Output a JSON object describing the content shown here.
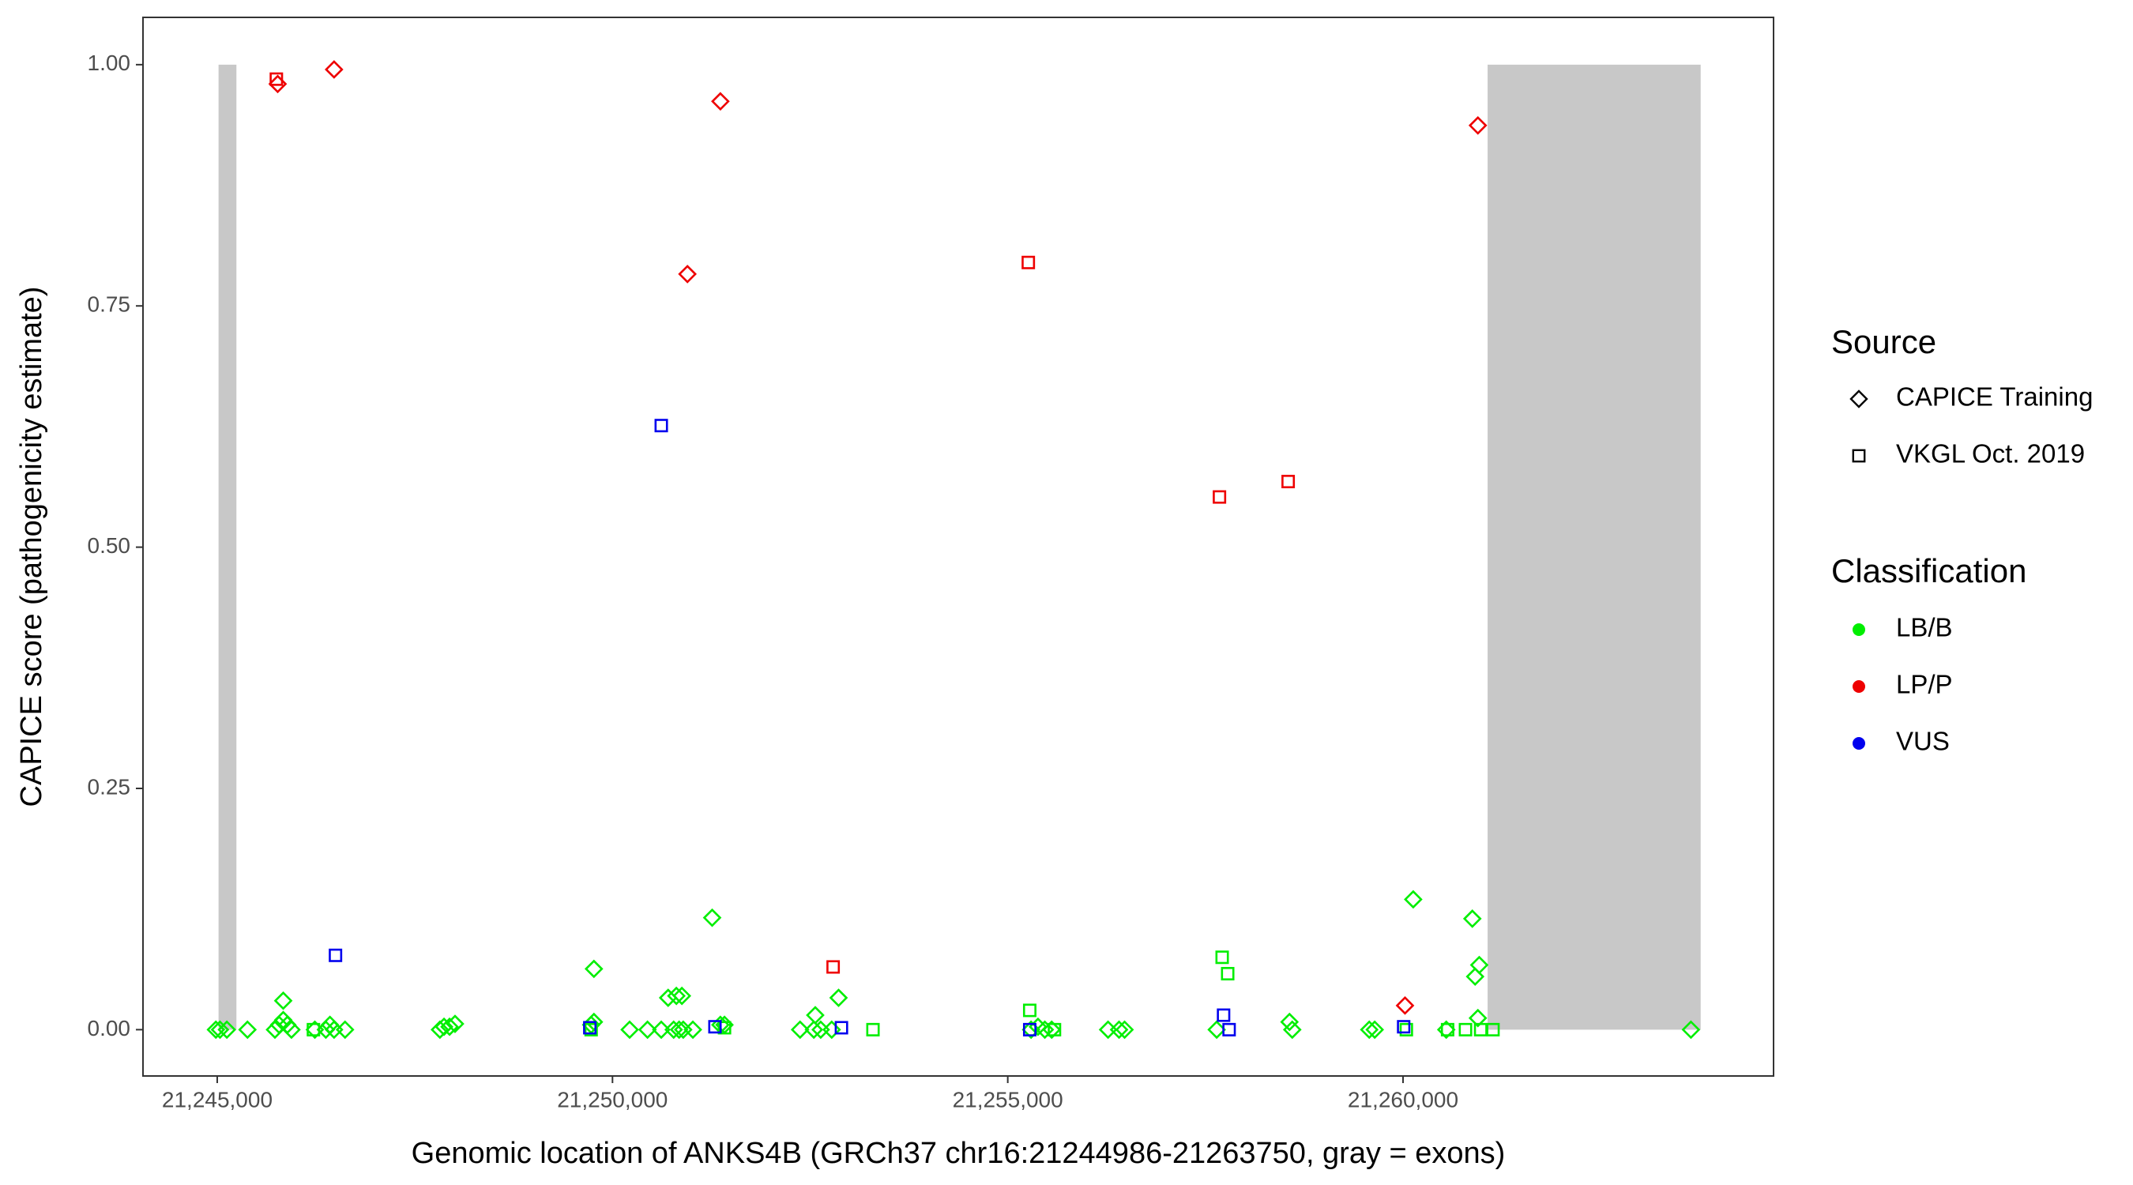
{
  "chart_data": {
    "type": "scatter",
    "xlabel": "Genomic location of ANKS4B (GRCh37 chr16:21244986-21263750, gray = exons)",
    "ylabel": "CAPICE score (pathogenicity estimate)",
    "xlim": [
      21244061,
      21264687
    ],
    "ylim": [
      -0.048,
      1.049
    ],
    "xticks": [
      {
        "value": 21245000,
        "label": "21,245,000"
      },
      {
        "value": 21250000,
        "label": "21,250,000"
      },
      {
        "value": 21255000,
        "label": "21,255,000"
      },
      {
        "value": 21260000,
        "label": "21,260,000"
      }
    ],
    "yticks": [
      {
        "value": 0,
        "label": "0.00"
      },
      {
        "value": 0.25,
        "label": "0.25"
      },
      {
        "value": 0.5,
        "label": "0.50"
      },
      {
        "value": 0.75,
        "label": "0.75"
      },
      {
        "value": 1,
        "label": "1.00"
      }
    ],
    "exon_color": "#c8c8c8",
    "exons": [
      {
        "start": 21245017,
        "end": 21245243,
        "bottom": 0,
        "top": 1
      },
      {
        "start": 21261070,
        "end": 21263765,
        "bottom": 0,
        "top": 1
      }
    ],
    "legend_source_title": "Source",
    "legend_class_title": "Classification",
    "series": [
      {
        "source": "CAPICE Training",
        "shape": "diamond",
        "classification": "LB/B",
        "color": "#00ee00",
        "x": [
          21244983,
          21245035,
          21245122,
          21245383,
          21245730,
          21245783,
          21245835,
          21245887,
          21245939,
          21245835,
          21246235,
          21246374,
          21246426,
          21246478,
          21246617,
          21247817,
          21247869,
          21247939,
          21248008,
          21249765,
          21249730,
          21249765,
          21250217,
          21250443,
          21250617,
          21250774,
          21250843,
          21250895,
          21251017,
          21250704,
          21250808,
          21250878,
          21251261,
          21251365,
          21251417,
          21252373,
          21252547,
          21252634,
          21252773,
          21252565,
          21252860,
          21255295,
          21255382,
          21255469,
          21255556,
          21256269,
          21256408,
          21256478,
          21257643,
          21258564,
          21258599,
          21259573,
          21259642,
          21260129,
          21260877,
          21260912,
          21260964,
          21260947,
          21260547,
          21263642
        ],
        "values": [
          0,
          0,
          0,
          0,
          0,
          0.005,
          0.01,
          0.005,
          0,
          0.03,
          0,
          0,
          0.005,
          0,
          0,
          0,
          0.003,
          0.003,
          0.006,
          0.063,
          0.005,
          0.008,
          0,
          0,
          0,
          0,
          0,
          0,
          0,
          0.033,
          0.035,
          0.035,
          0.116,
          0.005,
          0.005,
          0,
          0,
          0,
          0,
          0.015,
          0.033,
          0,
          0.003,
          0,
          0,
          0,
          0,
          0,
          0,
          0.008,
          0,
          0,
          0,
          0.135,
          0.115,
          0.055,
          0.067,
          0.012,
          0,
          0
        ]
      },
      {
        "source": "CAPICE Training",
        "shape": "diamond",
        "classification": "LP/P",
        "color": "#ee0000",
        "x": [
          21245765,
          21246478,
          21251365,
          21250948,
          21260947,
          21260025
        ],
        "values": [
          0.98,
          0.995,
          0.962,
          0.783,
          0.937,
          0.025
        ]
      },
      {
        "source": "VKGL Oct. 2019",
        "shape": "square",
        "classification": "LB/B",
        "color": "#00ee00",
        "x": [
          21246217,
          21249730,
          21251417,
          21253295,
          21255278,
          21255591,
          21257712,
          21257782,
          21260564,
          21260790,
          21260982,
          21261138,
          21260042
        ],
        "values": [
          0,
          0,
          0.002,
          0,
          0.02,
          0,
          0.075,
          0.058,
          0,
          0,
          0,
          0,
          0
        ]
      },
      {
        "source": "VKGL Oct. 2019",
        "shape": "square",
        "classification": "LP/P",
        "color": "#ee0000",
        "x": [
          21245748,
          21255260,
          21252791,
          21257678,
          21258547
        ],
        "values": [
          0.985,
          0.795,
          0.065,
          0.552,
          0.568
        ]
      },
      {
        "source": "VKGL Oct. 2019",
        "shape": "square",
        "classification": "VUS",
        "color": "#0000ee",
        "x": [
          21246496,
          21250617,
          21249713,
          21251296,
          21252896,
          21255278,
          21257730,
          21257800,
          21260008
        ],
        "values": [
          0.077,
          0.626,
          0.002,
          0.003,
          0.002,
          0,
          0.015,
          0,
          0.003
        ]
      }
    ]
  }
}
